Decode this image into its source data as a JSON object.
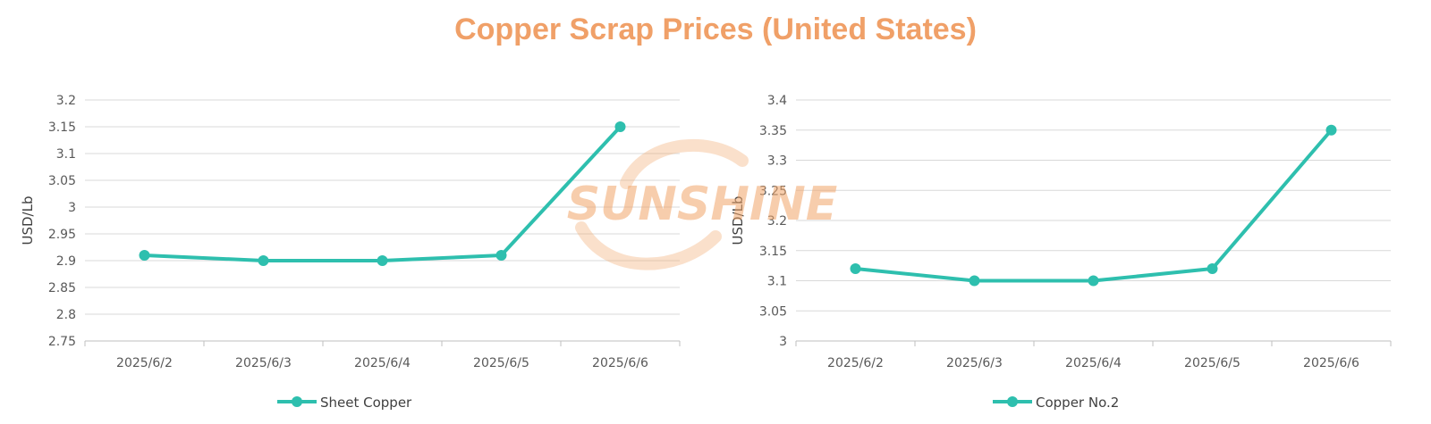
{
  "title": "Copper Scrap Prices (United States)",
  "watermark": "SUNSHINE",
  "colors": {
    "series": "#2EBFAE",
    "title": "#F0A068",
    "grid": "#D9D9D9",
    "axis": "#BFBFBF",
    "watermark": "#F2A66A"
  },
  "chart_data": [
    {
      "type": "line",
      "title": "",
      "xlabel": "",
      "ylabel": "USD/Lb",
      "categories": [
        "2025/6/2",
        "2025/6/3",
        "2025/6/4",
        "2025/6/5",
        "2025/6/6"
      ],
      "series": [
        {
          "name": "Sheet Copper",
          "values": [
            2.91,
            2.9,
            2.9,
            2.91,
            3.15
          ]
        }
      ],
      "ylim": [
        2.75,
        3.2
      ],
      "yticks": [
        "2.75",
        "2.8",
        "2.85",
        "2.9",
        "2.95",
        "3",
        "3.05",
        "3.1",
        "3.15",
        "3.2"
      ],
      "grid": true,
      "legend": "bottom"
    },
    {
      "type": "line",
      "title": "",
      "xlabel": "",
      "ylabel": "USD/Lb",
      "categories": [
        "2025/6/2",
        "2025/6/3",
        "2025/6/4",
        "2025/6/5",
        "2025/6/6"
      ],
      "series": [
        {
          "name": "Copper No.2",
          "values": [
            3.12,
            3.1,
            3.1,
            3.12,
            3.35
          ]
        }
      ],
      "ylim": [
        3.0,
        3.4
      ],
      "yticks": [
        "3",
        "3.05",
        "3.1",
        "3.15",
        "3.2",
        "3.25",
        "3.3",
        "3.35",
        "3.4"
      ],
      "grid": true,
      "legend": "bottom"
    }
  ]
}
